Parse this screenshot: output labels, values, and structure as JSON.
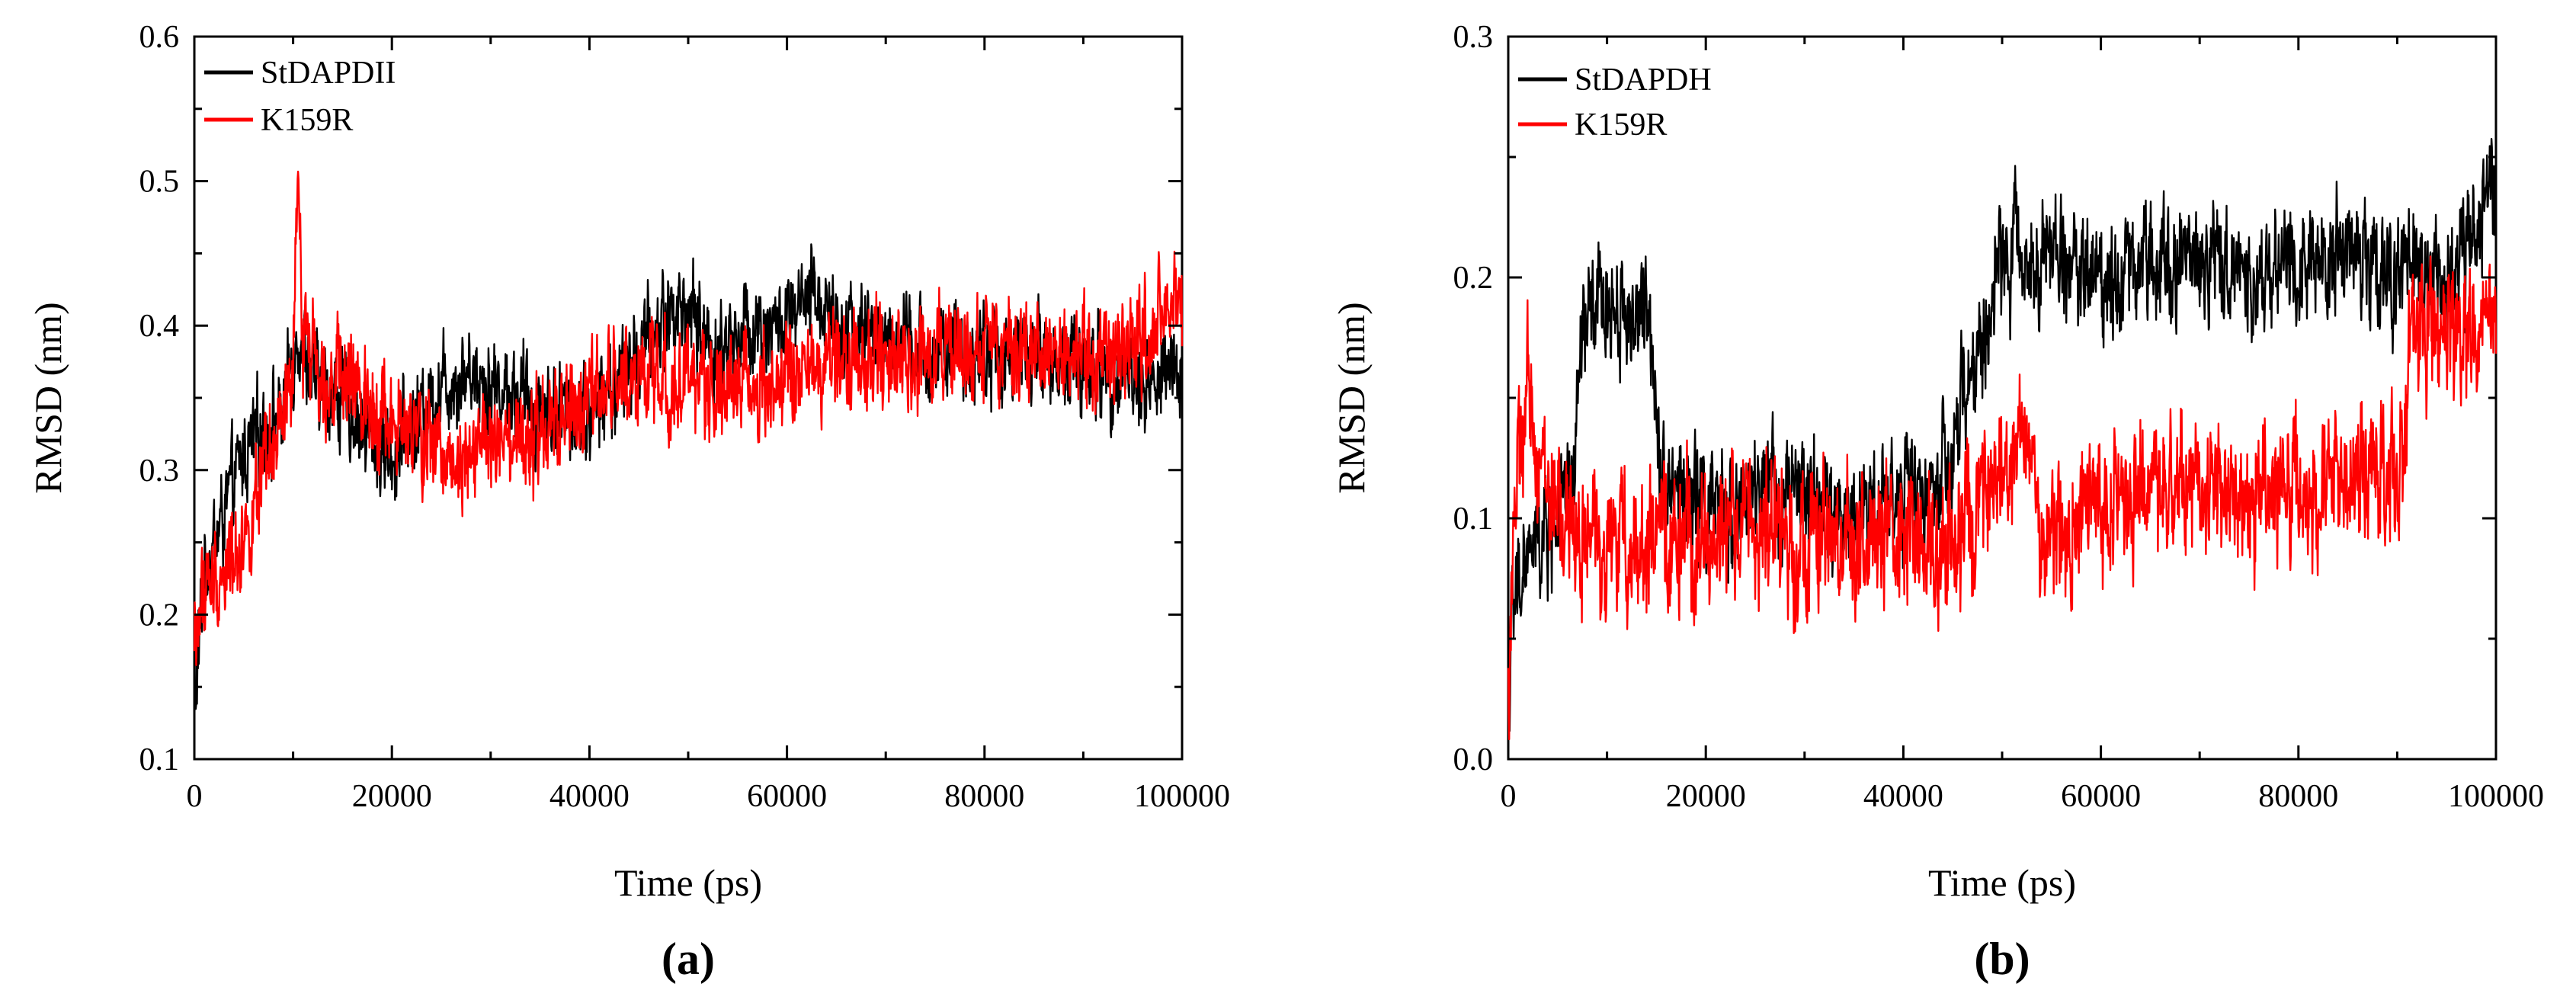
{
  "chart_data": [
    {
      "type": "line",
      "panel_label": "(a)",
      "xlabel": "Time (ps)",
      "ylabel": "RMSD (nm)",
      "xlim": [
        0,
        100000
      ],
      "ylim": [
        0.1,
        0.6
      ],
      "xticks": [
        "0",
        "20000",
        "40000",
        "60000",
        "80000",
        "100000"
      ],
      "yticks": [
        "0.1",
        "0.2",
        "0.3",
        "0.4",
        "0.5",
        "0.6"
      ],
      "legend_position": "top-left",
      "series": [
        {
          "name": "StDAPDII",
          "color": "#000000",
          "noise": 0.03,
          "x": [
            0,
            1000,
            2000,
            3000,
            5000,
            7000,
            9000,
            10500,
            12000,
            15000,
            18000,
            20000,
            22000,
            25000,
            28000,
            30000,
            33000,
            36000,
            40000,
            43000,
            46000,
            48000,
            50000,
            53000,
            56000,
            60000,
            63000,
            66000,
            70000,
            74000,
            78000,
            82000,
            86000,
            90000,
            93000,
            96000,
            100000
          ],
          "y": [
            0.13,
            0.23,
            0.25,
            0.27,
            0.31,
            0.33,
            0.34,
            0.4,
            0.36,
            0.35,
            0.32,
            0.31,
            0.33,
            0.36,
            0.37,
            0.36,
            0.35,
            0.34,
            0.34,
            0.36,
            0.39,
            0.41,
            0.41,
            0.38,
            0.4,
            0.4,
            0.42,
            0.4,
            0.39,
            0.38,
            0.38,
            0.38,
            0.38,
            0.37,
            0.37,
            0.36,
            0.37
          ]
        },
        {
          "name": "K159R",
          "color": "#ff0000",
          "noise": 0.032,
          "x": [
            0,
            1000,
            2000,
            4000,
            6000,
            8000,
            10000,
            10500,
            11000,
            13000,
            15000,
            18000,
            20000,
            23000,
            26000,
            29000,
            32000,
            35000,
            38000,
            41000,
            44000,
            48000,
            52000,
            56000,
            60000,
            64000,
            68000,
            72000,
            76000,
            80000,
            84000,
            88000,
            92000,
            96000,
            100000
          ],
          "y": [
            0.18,
            0.22,
            0.22,
            0.24,
            0.27,
            0.31,
            0.36,
            0.5,
            0.4,
            0.37,
            0.36,
            0.35,
            0.33,
            0.32,
            0.31,
            0.32,
            0.31,
            0.32,
            0.34,
            0.35,
            0.37,
            0.36,
            0.36,
            0.36,
            0.36,
            0.37,
            0.38,
            0.38,
            0.38,
            0.38,
            0.38,
            0.38,
            0.38,
            0.39,
            0.41
          ]
        }
      ]
    },
    {
      "type": "line",
      "panel_label": "(b)",
      "xlabel": "Time (ps)",
      "ylabel": "RMSD (nm)",
      "xlim": [
        0,
        100000
      ],
      "ylim": [
        0.0,
        0.3
      ],
      "xticks": [
        "0",
        "20000",
        "40000",
        "60000",
        "80000",
        "100000"
      ],
      "yticks": [
        "0.0",
        "0.1",
        "0.2",
        "0.3"
      ],
      "legend_position": "top-left",
      "series": [
        {
          "name": "StDAPDH",
          "color": "#000000",
          "noise": 0.022,
          "x": [
            0,
            500,
            1500,
            3000,
            5000,
            6500,
            7500,
            10000,
            14500,
            15500,
            18000,
            22000,
            26000,
            30000,
            34000,
            38000,
            42000,
            45000,
            46000,
            48000,
            50000,
            52000,
            55000,
            60000,
            65000,
            70000,
            75000,
            80000,
            85000,
            90000,
            93000,
            96000,
            99000,
            100000
          ],
          "y": [
            0.03,
            0.06,
            0.08,
            0.09,
            0.1,
            0.11,
            0.18,
            0.19,
            0.18,
            0.12,
            0.11,
            0.1,
            0.11,
            0.11,
            0.1,
            0.11,
            0.11,
            0.12,
            0.15,
            0.17,
            0.21,
            0.21,
            0.21,
            0.2,
            0.21,
            0.21,
            0.2,
            0.21,
            0.21,
            0.2,
            0.2,
            0.2,
            0.23,
            0.25
          ]
        },
        {
          "name": "K159R",
          "color": "#ff0000",
          "noise": 0.026,
          "x": [
            0,
            500,
            2000,
            3000,
            5000,
            8000,
            12000,
            16000,
            20000,
            24000,
            28000,
            32000,
            36000,
            40000,
            44000,
            48000,
            51000,
            52500,
            54000,
            58000,
            62000,
            66000,
            70000,
            74000,
            78000,
            82000,
            85000,
            88000,
            90000,
            91500,
            94000,
            97000,
            100000
          ],
          "y": [
            0.02,
            0.1,
            0.15,
            0.13,
            0.1,
            0.09,
            0.09,
            0.09,
            0.09,
            0.1,
            0.09,
            0.09,
            0.09,
            0.09,
            0.09,
            0.1,
            0.12,
            0.14,
            0.09,
            0.1,
            0.11,
            0.11,
            0.12,
            0.11,
            0.11,
            0.11,
            0.12,
            0.12,
            0.11,
            0.18,
            0.18,
            0.18,
            0.18
          ]
        }
      ]
    }
  ]
}
